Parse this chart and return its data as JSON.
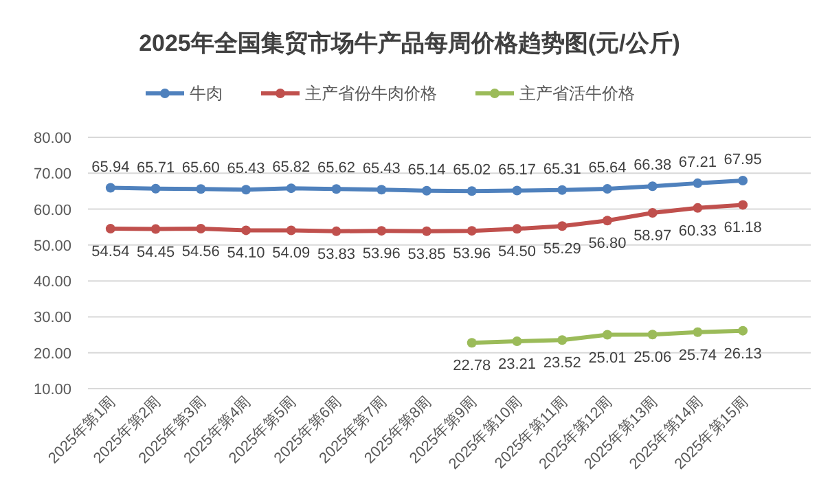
{
  "chart_data": {
    "type": "line",
    "title": "2025年全国集贸市场牛产品每周价格趋势图(元/公斤)",
    "categories": [
      "2025年第1周",
      "2025年第2周",
      "2025年第3周",
      "2025年第4周",
      "2025年第5周",
      "2025年第6周",
      "2025年第7周",
      "2025年第8周",
      "2025年第9周",
      "2025年第10周",
      "2025年第11周",
      "2025年第12周",
      "2025年第13周",
      "2025年第14周",
      "2025年第15周"
    ],
    "series": [
      {
        "name": "牛肉",
        "color": "#4f81bd",
        "values": [
          65.94,
          65.71,
          65.6,
          65.43,
          65.82,
          65.62,
          65.43,
          65.14,
          65.02,
          65.17,
          65.31,
          65.64,
          66.38,
          67.21,
          67.95
        ],
        "value_labels": [
          "65.94",
          "65.71",
          "65.60",
          "65.43",
          "65.82",
          "65.62",
          "65.43",
          "65.14",
          "65.02",
          "65.17",
          "65.31",
          "65.64",
          "66.38",
          "67.21",
          "67.95"
        ]
      },
      {
        "name": "主产省份牛肉价格",
        "color": "#c0504d",
        "values": [
          54.54,
          54.45,
          54.56,
          54.1,
          54.09,
          53.83,
          53.96,
          53.85,
          53.96,
          54.5,
          55.29,
          56.8,
          58.97,
          60.33,
          61.18
        ],
        "value_labels": [
          "54.54",
          "54.45",
          "54.56",
          "54.10",
          "54.09",
          "53.83",
          "53.96",
          "53.85",
          "53.96",
          "54.50",
          "55.29",
          "56.80",
          "58.97",
          "60.33",
          "61.18"
        ]
      },
      {
        "name": "主产省活牛价格",
        "color": "#9bbb59",
        "values": [
          null,
          null,
          null,
          null,
          null,
          null,
          null,
          null,
          22.78,
          23.21,
          23.52,
          25.01,
          25.06,
          25.74,
          26.13
        ],
        "value_labels": [
          null,
          null,
          null,
          null,
          null,
          null,
          null,
          null,
          "22.78",
          "23.21",
          "23.52",
          "25.01",
          "25.06",
          "25.74",
          "26.13"
        ]
      }
    ],
    "ylim": [
      10,
      80
    ],
    "yticks": [
      {
        "value": 10,
        "label": "10.00"
      },
      {
        "value": 20,
        "label": "20.00"
      },
      {
        "value": 30,
        "label": "30.00"
      },
      {
        "value": 40,
        "label": "40.00"
      },
      {
        "value": 50,
        "label": "50.00"
      },
      {
        "value": 60,
        "label": "60.00"
      },
      {
        "value": 70,
        "label": "70.00"
      },
      {
        "value": 80,
        "label": "80.00"
      }
    ],
    "grid": "y",
    "legend": "top",
    "marker": "circle",
    "line_style": "solid"
  }
}
